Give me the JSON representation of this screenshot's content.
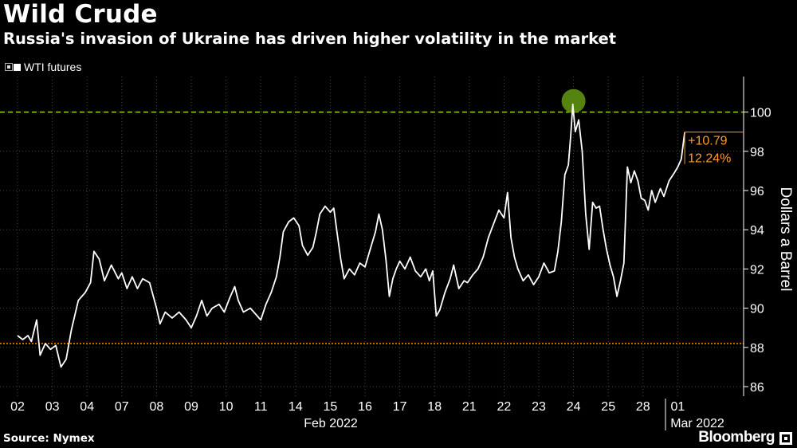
{
  "title": "Wild Crude",
  "subtitle": "Russia's invasion of Ukraine has driven higher volatility in the market",
  "legend_label": "WTI futures",
  "source": "Source: Nymex",
  "brand": "Bloomberg",
  "colors": {
    "line": "#ffffff",
    "dashed_green": "#b5e61d",
    "dotted_orange": "#ff8c00",
    "highlight_circle": "#5a8a10",
    "annotation": "#ff9a2e"
  },
  "chart_data": {
    "type": "line",
    "title": "Wild Crude",
    "subtitle": "Russia's invasion of Ukraine has driven higher volatility in the market",
    "ylabel": "Dollars a Barrel",
    "ylim": [
      86,
      101
    ],
    "yticks": [
      86,
      88,
      90,
      92,
      94,
      96,
      98,
      100
    ],
    "x_tick_labels": [
      "02",
      "03",
      "04",
      "07",
      "08",
      "09",
      "10",
      "11",
      "14",
      "15",
      "16",
      "17",
      "18",
      "21",
      "22",
      "23",
      "24",
      "25",
      "28",
      "01"
    ],
    "x_group_labels": [
      "Feb 2022",
      "Mar 2022"
    ],
    "reference_lines": [
      {
        "value": 100,
        "style": "dashed",
        "color": "#b5e61d"
      },
      {
        "value": 88.2,
        "style": "dotted",
        "color": "#ff8c00"
      }
    ],
    "annotation": {
      "line1": "+10.79",
      "line2": "12.24%",
      "value": 98.98
    },
    "peak": {
      "x_index": 16.0,
      "value": 100.4
    },
    "series": [
      {
        "name": "WTI futures",
        "points": [
          [
            0.0,
            88.6
          ],
          [
            0.15,
            88.4
          ],
          [
            0.3,
            88.6
          ],
          [
            0.4,
            88.3
          ],
          [
            0.55,
            89.4
          ],
          [
            0.65,
            87.6
          ],
          [
            0.8,
            88.2
          ],
          [
            0.95,
            87.9
          ],
          [
            1.1,
            88.1
          ],
          [
            1.25,
            87.0
          ],
          [
            1.4,
            87.4
          ],
          [
            1.55,
            88.9
          ],
          [
            1.75,
            90.4
          ],
          [
            1.95,
            90.8
          ],
          [
            2.1,
            91.3
          ],
          [
            2.2,
            92.9
          ],
          [
            2.35,
            92.5
          ],
          [
            2.5,
            91.4
          ],
          [
            2.7,
            92.2
          ],
          [
            2.9,
            91.5
          ],
          [
            3.0,
            91.8
          ],
          [
            3.15,
            91.0
          ],
          [
            3.3,
            91.6
          ],
          [
            3.45,
            91.0
          ],
          [
            3.6,
            91.5
          ],
          [
            3.8,
            91.3
          ],
          [
            4.0,
            90.0
          ],
          [
            4.1,
            89.2
          ],
          [
            4.25,
            89.8
          ],
          [
            4.45,
            89.5
          ],
          [
            4.65,
            89.8
          ],
          [
            4.85,
            89.4
          ],
          [
            5.0,
            89.0
          ],
          [
            5.15,
            89.6
          ],
          [
            5.3,
            90.4
          ],
          [
            5.45,
            89.6
          ],
          [
            5.6,
            90.0
          ],
          [
            5.8,
            90.2
          ],
          [
            5.95,
            89.8
          ],
          [
            6.1,
            90.5
          ],
          [
            6.25,
            91.1
          ],
          [
            6.35,
            90.4
          ],
          [
            6.5,
            89.8
          ],
          [
            6.7,
            90.0
          ],
          [
            6.85,
            89.7
          ],
          [
            7.0,
            89.4
          ],
          [
            7.15,
            90.2
          ],
          [
            7.3,
            90.8
          ],
          [
            7.45,
            91.6
          ],
          [
            7.55,
            92.6
          ],
          [
            7.65,
            93.9
          ],
          [
            7.8,
            94.4
          ],
          [
            7.95,
            94.6
          ],
          [
            8.1,
            94.2
          ],
          [
            8.2,
            93.2
          ],
          [
            8.35,
            92.7
          ],
          [
            8.5,
            93.1
          ],
          [
            8.6,
            93.9
          ],
          [
            8.7,
            94.8
          ],
          [
            8.85,
            95.2
          ],
          [
            9.0,
            94.9
          ],
          [
            9.1,
            95.1
          ],
          [
            9.2,
            93.8
          ],
          [
            9.3,
            92.5
          ],
          [
            9.4,
            91.5
          ],
          [
            9.55,
            92.0
          ],
          [
            9.7,
            91.7
          ],
          [
            9.85,
            92.3
          ],
          [
            10.0,
            92.1
          ],
          [
            10.15,
            93.0
          ],
          [
            10.3,
            93.9
          ],
          [
            10.4,
            94.8
          ],
          [
            10.5,
            94.0
          ],
          [
            10.6,
            92.5
          ],
          [
            10.7,
            90.6
          ],
          [
            10.8,
            91.5
          ],
          [
            10.9,
            92.0
          ],
          [
            11.0,
            92.4
          ],
          [
            11.15,
            92.0
          ],
          [
            11.3,
            92.6
          ],
          [
            11.45,
            91.9
          ],
          [
            11.6,
            91.6
          ],
          [
            11.75,
            92.0
          ],
          [
            11.85,
            91.4
          ],
          [
            11.95,
            91.9
          ],
          [
            12.05,
            89.6
          ],
          [
            12.15,
            89.9
          ],
          [
            12.3,
            90.8
          ],
          [
            12.45,
            91.5
          ],
          [
            12.55,
            92.2
          ],
          [
            12.7,
            91.0
          ],
          [
            12.85,
            91.4
          ],
          [
            12.95,
            91.3
          ],
          [
            13.1,
            91.7
          ],
          [
            13.25,
            92.0
          ],
          [
            13.4,
            92.6
          ],
          [
            13.55,
            93.6
          ],
          [
            13.7,
            94.3
          ],
          [
            13.85,
            95.0
          ],
          [
            14.0,
            94.6
          ],
          [
            14.1,
            95.9
          ],
          [
            14.2,
            93.6
          ],
          [
            14.3,
            92.6
          ],
          [
            14.4,
            92.0
          ],
          [
            14.55,
            91.4
          ],
          [
            14.7,
            91.7
          ],
          [
            14.85,
            91.2
          ],
          [
            15.0,
            91.6
          ],
          [
            15.15,
            92.3
          ],
          [
            15.3,
            91.8
          ],
          [
            15.45,
            91.9
          ],
          [
            15.55,
            92.9
          ],
          [
            15.65,
            94.4
          ],
          [
            15.75,
            96.8
          ],
          [
            15.85,
            97.3
          ],
          [
            15.92,
            98.8
          ],
          [
            15.98,
            100.4
          ],
          [
            16.05,
            99.0
          ],
          [
            16.15,
            99.6
          ],
          [
            16.25,
            98.0
          ],
          [
            16.35,
            94.8
          ],
          [
            16.45,
            93.0
          ],
          [
            16.55,
            95.4
          ],
          [
            16.65,
            95.1
          ],
          [
            16.75,
            95.2
          ],
          [
            16.85,
            94.0
          ],
          [
            16.95,
            93.0
          ],
          [
            17.05,
            92.2
          ],
          [
            17.15,
            91.6
          ],
          [
            17.25,
            90.6
          ],
          [
            17.35,
            91.4
          ],
          [
            17.45,
            92.3
          ],
          [
            17.55,
            97.2
          ],
          [
            17.65,
            96.4
          ],
          [
            17.75,
            97.0
          ],
          [
            17.85,
            96.5
          ],
          [
            17.95,
            95.6
          ],
          [
            18.05,
            95.5
          ],
          [
            18.15,
            95.0
          ],
          [
            18.25,
            96.0
          ],
          [
            18.35,
            95.4
          ],
          [
            18.5,
            96.1
          ],
          [
            18.6,
            95.7
          ],
          [
            18.75,
            96.5
          ],
          [
            18.9,
            96.9
          ],
          [
            19.0,
            97.2
          ],
          [
            19.1,
            97.6
          ],
          [
            19.2,
            98.98
          ]
        ]
      }
    ]
  }
}
